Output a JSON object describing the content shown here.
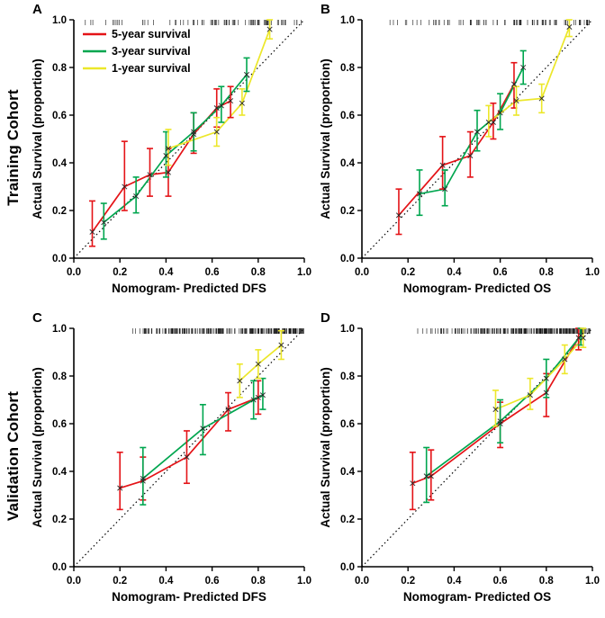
{
  "figure": {
    "background": "#ffffff",
    "row_labels": [
      "Training Cohort",
      "Validation Cohort"
    ],
    "panels": [
      {
        "letter": "A"
      },
      {
        "letter": "B"
      },
      {
        "letter": "C"
      },
      {
        "letter": "D"
      }
    ]
  },
  "chart_data": [
    {
      "type": "line",
      "panel": "A",
      "cohort": "Training Cohort",
      "xlabel": "Nomogram- Predicted DFS",
      "ylabel": "Actual Survival (proportion)",
      "xlim": [
        0.0,
        1.0
      ],
      "ylim": [
        0.0,
        1.0
      ],
      "xticks": [
        0.0,
        0.2,
        0.4,
        0.6,
        0.8,
        1.0
      ],
      "yticks": [
        0.0,
        0.2,
        0.4,
        0.6,
        0.8,
        1.0
      ],
      "diagonal": true,
      "show_legend": true,
      "marker": "x",
      "rug": {
        "count": 85,
        "min": 0.04,
        "max": 1.0,
        "skew": 0.7,
        "seed": 3
      },
      "series": [
        {
          "name": "5-year survival",
          "color": "#e41317",
          "points": [
            {
              "x": 0.08,
              "y": 0.11,
              "lo": 0.05,
              "hi": 0.24
            },
            {
              "x": 0.22,
              "y": 0.3,
              "lo": 0.2,
              "hi": 0.49
            },
            {
              "x": 0.33,
              "y": 0.35,
              "lo": 0.26,
              "hi": 0.46
            },
            {
              "x": 0.41,
              "y": 0.36,
              "lo": 0.26,
              "hi": 0.46
            },
            {
              "x": 0.52,
              "y": 0.52,
              "lo": 0.44,
              "hi": 0.61
            },
            {
              "x": 0.62,
              "y": 0.63,
              "lo": 0.55,
              "hi": 0.71
            },
            {
              "x": 0.68,
              "y": 0.66,
              "lo": 0.59,
              "hi": 0.72
            }
          ]
        },
        {
          "name": "3-year survival",
          "color": "#00a64f",
          "points": [
            {
              "x": 0.13,
              "y": 0.15,
              "lo": 0.08,
              "hi": 0.23
            },
            {
              "x": 0.27,
              "y": 0.26,
              "lo": 0.19,
              "hi": 0.34
            },
            {
              "x": 0.4,
              "y": 0.43,
              "lo": 0.34,
              "hi": 0.53
            },
            {
              "x": 0.52,
              "y": 0.53,
              "lo": 0.45,
              "hi": 0.61
            },
            {
              "x": 0.64,
              "y": 0.64,
              "lo": 0.57,
              "hi": 0.72
            },
            {
              "x": 0.75,
              "y": 0.77,
              "lo": 0.7,
              "hi": 0.84
            }
          ]
        },
        {
          "name": "1-year survival",
          "color": "#ece72a",
          "points": [
            {
              "x": 0.41,
              "y": 0.46,
              "lo": 0.39,
              "hi": 0.54
            },
            {
              "x": 0.62,
              "y": 0.53,
              "lo": 0.47,
              "hi": 0.59
            },
            {
              "x": 0.73,
              "y": 0.65,
              "lo": 0.6,
              "hi": 0.71
            },
            {
              "x": 0.85,
              "y": 0.96,
              "lo": 0.92,
              "hi": 1.0
            }
          ]
        }
      ]
    },
    {
      "type": "line",
      "panel": "B",
      "cohort": "Training Cohort",
      "xlabel": "Nomogram- Predicted OS",
      "ylabel": "Actual Survival (proportion)",
      "xlim": [
        0.0,
        1.0
      ],
      "ylim": [
        0.0,
        1.0
      ],
      "xticks": [
        0.0,
        0.2,
        0.4,
        0.6,
        0.8,
        1.0
      ],
      "yticks": [
        0.0,
        0.2,
        0.4,
        0.6,
        0.8,
        1.0
      ],
      "diagonal": true,
      "show_legend": false,
      "marker": "x",
      "rug": {
        "count": 85,
        "min": 0.1,
        "max": 1.0,
        "skew": 0.72,
        "seed": 7
      },
      "series": [
        {
          "name": "5-year survival",
          "color": "#e41317",
          "points": [
            {
              "x": 0.16,
              "y": 0.18,
              "lo": 0.1,
              "hi": 0.29
            },
            {
              "x": 0.35,
              "y": 0.39,
              "lo": 0.29,
              "hi": 0.51
            },
            {
              "x": 0.47,
              "y": 0.43,
              "lo": 0.34,
              "hi": 0.53
            },
            {
              "x": 0.57,
              "y": 0.57,
              "lo": 0.5,
              "hi": 0.65
            },
            {
              "x": 0.66,
              "y": 0.73,
              "lo": 0.63,
              "hi": 0.82
            }
          ]
        },
        {
          "name": "3-year survival",
          "color": "#00a64f",
          "points": [
            {
              "x": 0.25,
              "y": 0.27,
              "lo": 0.18,
              "hi": 0.37
            },
            {
              "x": 0.36,
              "y": 0.29,
              "lo": 0.22,
              "hi": 0.37
            },
            {
              "x": 0.5,
              "y": 0.53,
              "lo": 0.45,
              "hi": 0.62
            },
            {
              "x": 0.6,
              "y": 0.61,
              "lo": 0.54,
              "hi": 0.69
            },
            {
              "x": 0.7,
              "y": 0.8,
              "lo": 0.73,
              "hi": 0.87
            }
          ]
        },
        {
          "name": "1-year survival",
          "color": "#ece72a",
          "points": [
            {
              "x": 0.55,
              "y": 0.57,
              "lo": 0.51,
              "hi": 0.64
            },
            {
              "x": 0.67,
              "y": 0.66,
              "lo": 0.6,
              "hi": 0.72
            },
            {
              "x": 0.78,
              "y": 0.67,
              "lo": 0.61,
              "hi": 0.73
            },
            {
              "x": 0.9,
              "y": 0.97,
              "lo": 0.93,
              "hi": 1.0
            }
          ]
        }
      ]
    },
    {
      "type": "line",
      "panel": "C",
      "cohort": "Validation Cohort",
      "xlabel": "Nomogram- Predicted DFS",
      "ylabel": "Actual Survival (proportion)",
      "xlim": [
        0.0,
        1.0
      ],
      "ylim": [
        0.0,
        1.0
      ],
      "xticks": [
        0.0,
        0.2,
        0.4,
        0.6,
        0.8,
        1.0
      ],
      "yticks": [
        0.0,
        0.2,
        0.4,
        0.6,
        0.8,
        1.0
      ],
      "diagonal": true,
      "show_legend": false,
      "marker": "x",
      "rug": {
        "count": 230,
        "min": 0.22,
        "max": 1.0,
        "skew": 0.62,
        "seed": 13
      },
      "series": [
        {
          "name": "5-year survival",
          "color": "#e41317",
          "points": [
            {
              "x": 0.2,
              "y": 0.33,
              "lo": 0.24,
              "hi": 0.48
            },
            {
              "x": 0.3,
              "y": 0.36,
              "lo": 0.28,
              "hi": 0.46
            },
            {
              "x": 0.49,
              "y": 0.46,
              "lo": 0.35,
              "hi": 0.57
            },
            {
              "x": 0.67,
              "y": 0.66,
              "lo": 0.57,
              "hi": 0.73
            },
            {
              "x": 0.8,
              "y": 0.71,
              "lo": 0.64,
              "hi": 0.78
            }
          ]
        },
        {
          "name": "3-year survival",
          "color": "#00a64f",
          "points": [
            {
              "x": 0.3,
              "y": 0.37,
              "lo": 0.26,
              "hi": 0.5
            },
            {
              "x": 0.56,
              "y": 0.58,
              "lo": 0.47,
              "hi": 0.68
            },
            {
              "x": 0.78,
              "y": 0.7,
              "lo": 0.62,
              "hi": 0.78
            },
            {
              "x": 0.82,
              "y": 0.72,
              "lo": 0.66,
              "hi": 0.79
            }
          ]
        },
        {
          "name": "1-year survival",
          "color": "#ece72a",
          "points": [
            {
              "x": 0.72,
              "y": 0.78,
              "lo": 0.71,
              "hi": 0.85
            },
            {
              "x": 0.8,
              "y": 0.85,
              "lo": 0.79,
              "hi": 0.91
            },
            {
              "x": 0.9,
              "y": 0.93,
              "lo": 0.87,
              "hi": 0.99
            }
          ]
        }
      ]
    },
    {
      "type": "line",
      "panel": "D",
      "cohort": "Validation Cohort",
      "xlabel": "Nomogram- Predicted OS",
      "ylabel": "Actual Survival (proportion)",
      "xlim": [
        0.0,
        1.0
      ],
      "ylim": [
        0.0,
        1.0
      ],
      "xticks": [
        0.0,
        0.2,
        0.4,
        0.6,
        0.8,
        1.0
      ],
      "yticks": [
        0.0,
        0.2,
        0.4,
        0.6,
        0.8,
        1.0
      ],
      "diagonal": true,
      "show_legend": false,
      "marker": "x",
      "rug": {
        "count": 230,
        "min": 0.22,
        "max": 1.0,
        "skew": 0.62,
        "seed": 21
      },
      "series": [
        {
          "name": "5-year survival",
          "color": "#e41317",
          "points": [
            {
              "x": 0.22,
              "y": 0.35,
              "lo": 0.24,
              "hi": 0.48
            },
            {
              "x": 0.3,
              "y": 0.38,
              "lo": 0.28,
              "hi": 0.49
            },
            {
              "x": 0.6,
              "y": 0.6,
              "lo": 0.5,
              "hi": 0.69
            },
            {
              "x": 0.8,
              "y": 0.73,
              "lo": 0.63,
              "hi": 0.81
            },
            {
              "x": 0.94,
              "y": 0.96,
              "lo": 0.91,
              "hi": 1.0
            }
          ]
        },
        {
          "name": "3-year survival",
          "color": "#00a64f",
          "points": [
            {
              "x": 0.28,
              "y": 0.38,
              "lo": 0.27,
              "hi": 0.5
            },
            {
              "x": 0.6,
              "y": 0.61,
              "lo": 0.52,
              "hi": 0.7
            },
            {
              "x": 0.8,
              "y": 0.79,
              "lo": 0.71,
              "hi": 0.87
            },
            {
              "x": 0.95,
              "y": 0.97,
              "lo": 0.93,
              "hi": 1.0
            }
          ]
        },
        {
          "name": "1-year survival",
          "color": "#ece72a",
          "points": [
            {
              "x": 0.58,
              "y": 0.66,
              "lo": 0.59,
              "hi": 0.74
            },
            {
              "x": 0.73,
              "y": 0.72,
              "lo": 0.66,
              "hi": 0.79
            },
            {
              "x": 0.88,
              "y": 0.87,
              "lo": 0.81,
              "hi": 0.93
            },
            {
              "x": 0.96,
              "y": 0.96,
              "lo": 0.92,
              "hi": 1.0
            }
          ]
        }
      ]
    }
  ]
}
